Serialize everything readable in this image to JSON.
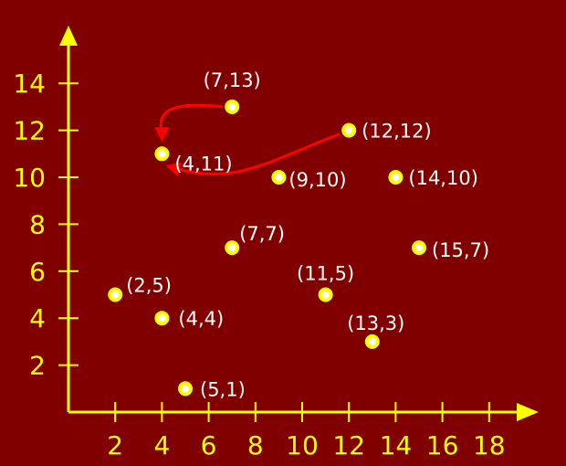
{
  "chart_data": {
    "type": "scatter",
    "x_ticks": [
      2,
      4,
      6,
      8,
      10,
      12,
      14,
      16,
      18
    ],
    "y_ticks": [
      2,
      4,
      6,
      8,
      10,
      12,
      14
    ],
    "xlim": [
      0,
      19.5
    ],
    "ylim": [
      0,
      15.5
    ],
    "grid": false,
    "points": [
      {
        "x": 7,
        "y": 13,
        "label": "(7,13)"
      },
      {
        "x": 12,
        "y": 12,
        "label": "(12,12)"
      },
      {
        "x": 4,
        "y": 11,
        "label": "(4,11)"
      },
      {
        "x": 9,
        "y": 10,
        "label": "(9,10)"
      },
      {
        "x": 14,
        "y": 10,
        "label": "(14,10)"
      },
      {
        "x": 7,
        "y": 7,
        "label": "(7,7)"
      },
      {
        "x": 15,
        "y": 7,
        "label": "(15,7)"
      },
      {
        "x": 2,
        "y": 5,
        "label": "(2,5)"
      },
      {
        "x": 11,
        "y": 5,
        "label": "(11,5)"
      },
      {
        "x": 4,
        "y": 4,
        "label": "(4,4)"
      },
      {
        "x": 13,
        "y": 3,
        "label": "(13,3)"
      },
      {
        "x": 5,
        "y": 1,
        "label": "(5,1)"
      }
    ],
    "arrows": [
      {
        "from": "(7,13)",
        "to": "(4,11)"
      },
      {
        "from": "(12,12)",
        "to": "(4,11)"
      }
    ],
    "colors": {
      "background": "#800000",
      "axes": "#ffff00",
      "point_fill": "#ffffff",
      "point_outline": "#ffff00",
      "arrow": "#ff0000"
    }
  }
}
